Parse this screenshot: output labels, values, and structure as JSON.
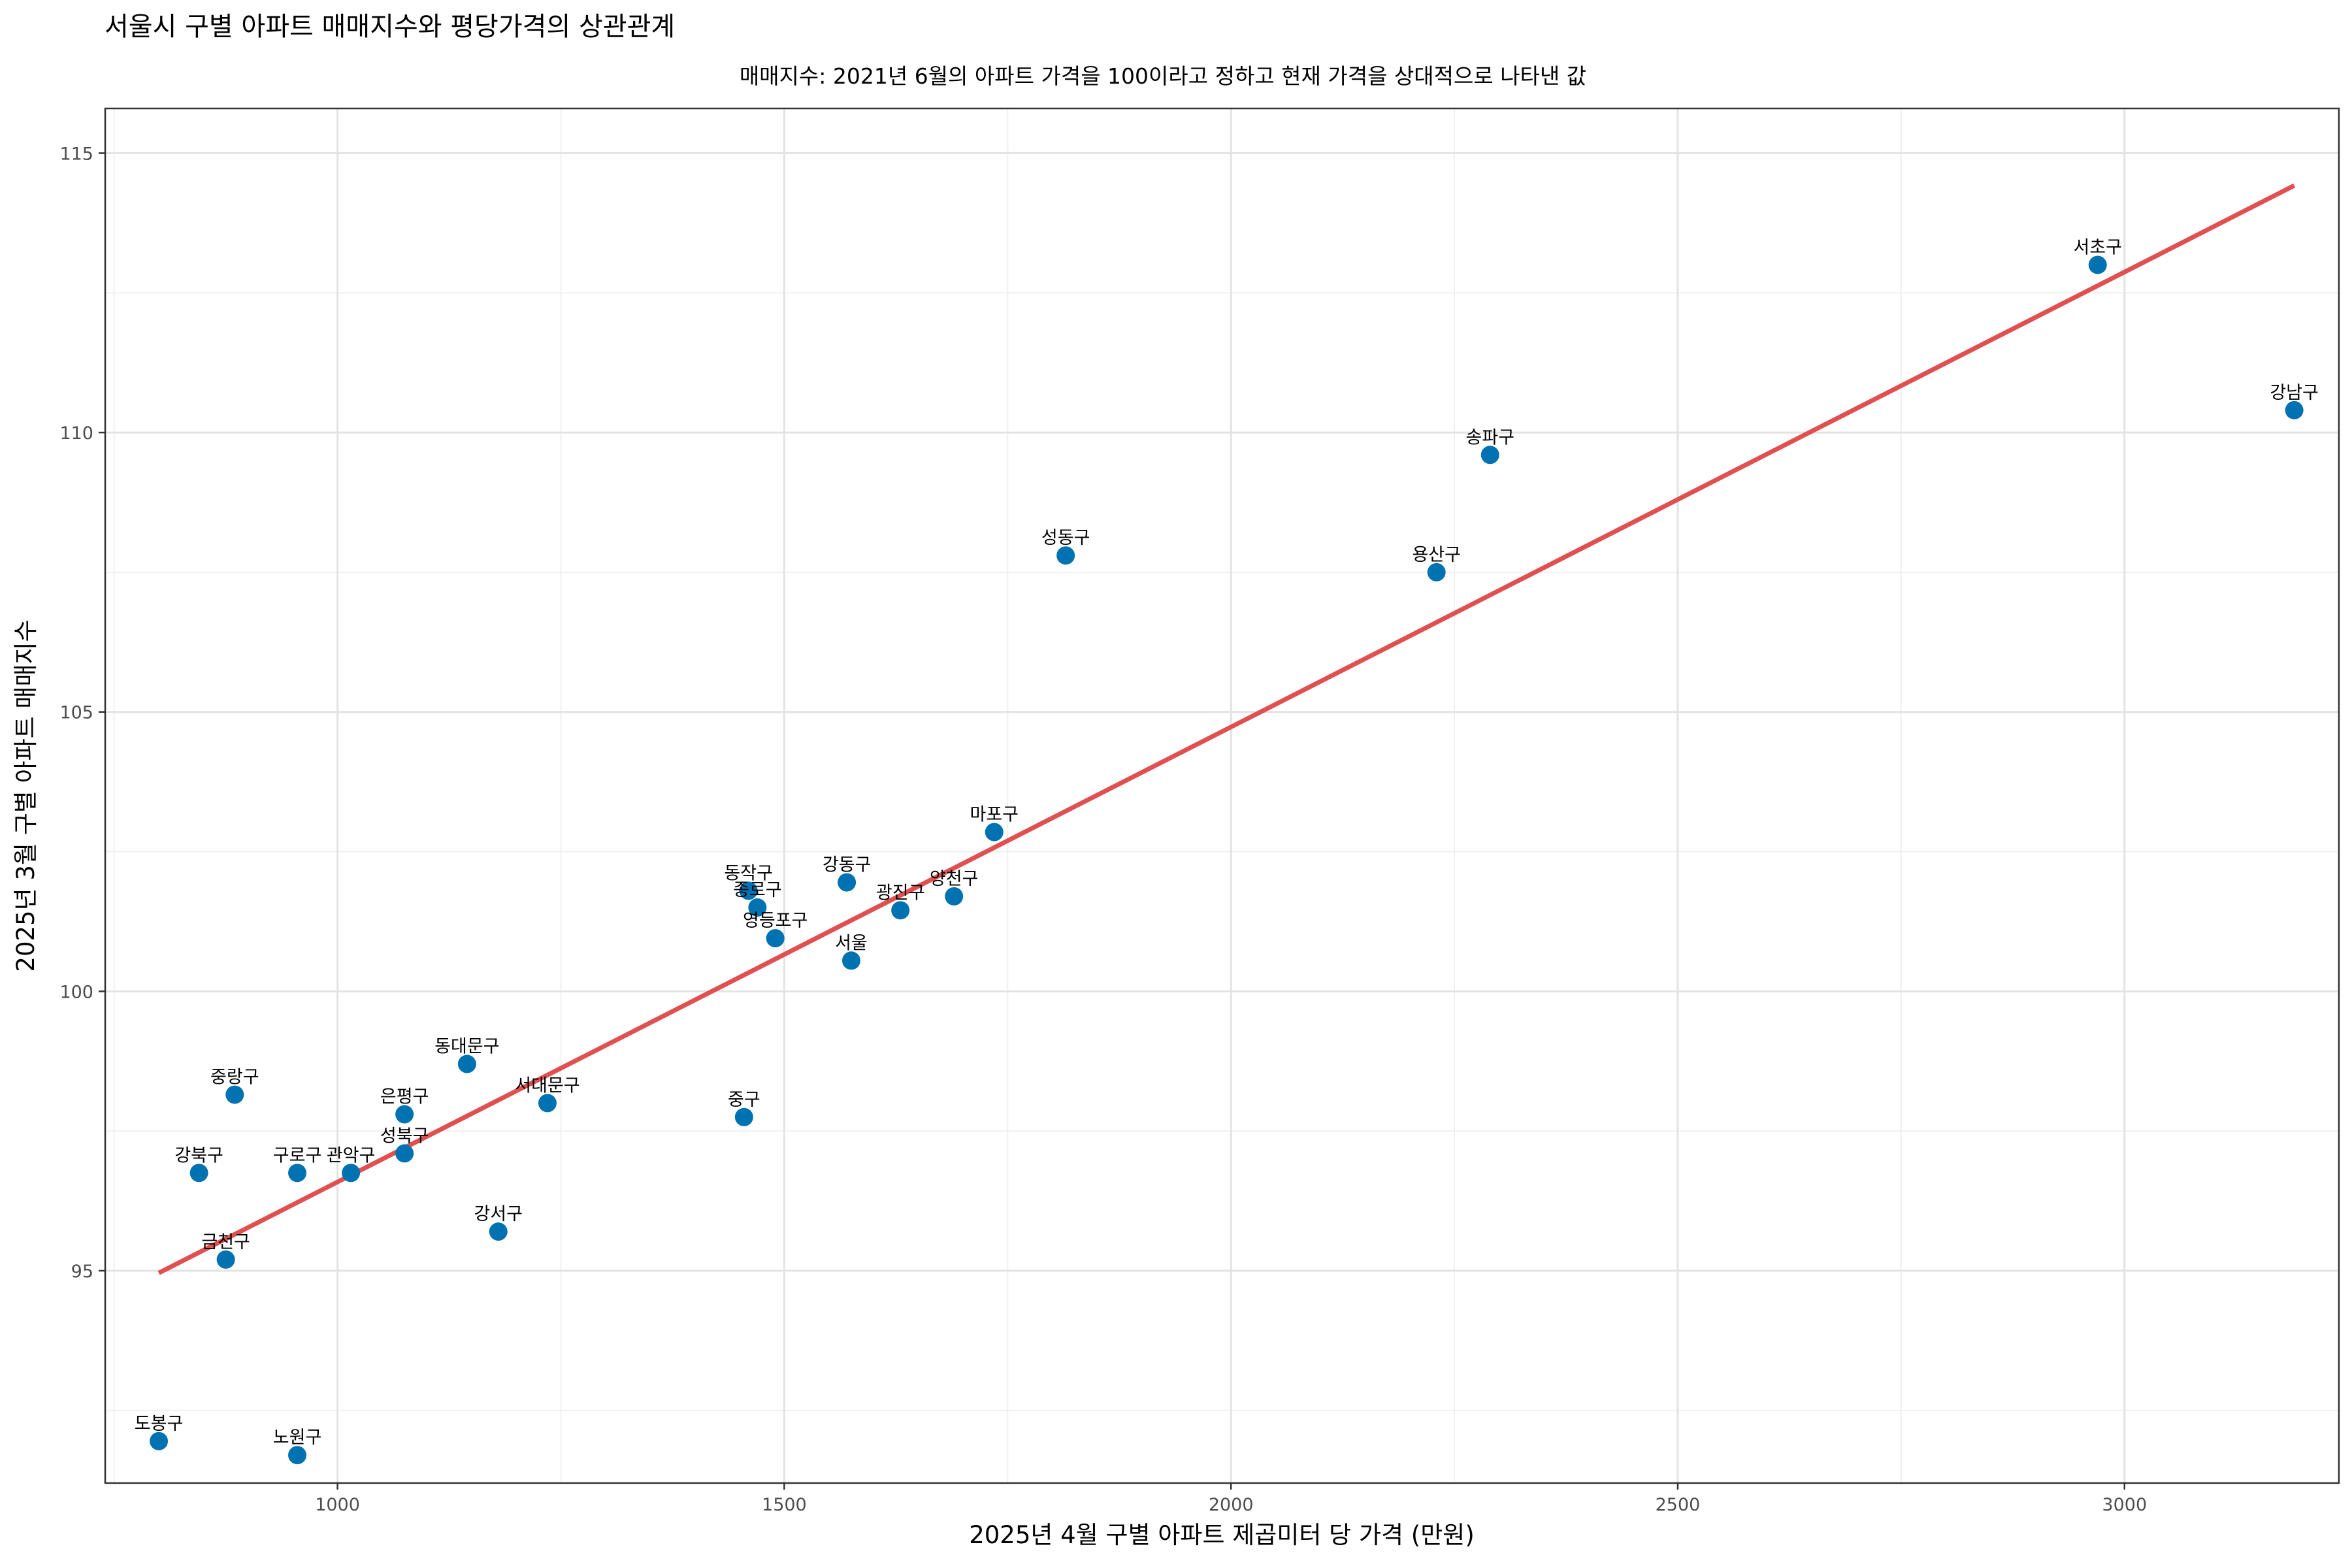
{
  "chart_data": {
    "type": "scatter",
    "title": "서울시 구별 아파트 매매지수와 평당가격의 상관관계",
    "subtitle": "매매지수: 2021년 6월의 아파트 가격을 100이라고 정하고 현재 가격을 상대적으로 나타낸 값",
    "xlabel": "2025년 4월 구별 아파트 제곱미터 당 가격 (만원)",
    "ylabel": "2025년 3월 구별 아파트 매매지수",
    "xlim": [
      740,
      3240
    ],
    "ylim": [
      91.2,
      115.8
    ],
    "x_ticks": [
      1000,
      1500,
      2000,
      2500,
      3000
    ],
    "y_ticks": [
      95,
      100,
      105,
      110,
      115
    ],
    "grid": true,
    "legend": "none",
    "point_color": "#0072B2",
    "trend_color": "#E05050",
    "trend_line": {
      "x": [
        800,
        3190
      ],
      "y": [
        94.96,
        114.42
      ]
    },
    "points": [
      {
        "label": "서초구",
        "x": 2970,
        "y": 113.0
      },
      {
        "label": "강남구",
        "x": 3190,
        "y": 110.4
      },
      {
        "label": "송파구",
        "x": 2290,
        "y": 109.6
      },
      {
        "label": "용산구",
        "x": 2230,
        "y": 107.5
      },
      {
        "label": "성동구",
        "x": 1815,
        "y": 107.8
      },
      {
        "label": "마포구",
        "x": 1735,
        "y": 102.85
      },
      {
        "label": "양천구",
        "x": 1690,
        "y": 101.7
      },
      {
        "label": "광진구",
        "x": 1630,
        "y": 101.45
      },
      {
        "label": "강동구",
        "x": 1570,
        "y": 101.95
      },
      {
        "label": "서울",
        "x": 1575,
        "y": 100.55
      },
      {
        "label": "동작구",
        "x": 1460,
        "y": 101.8
      },
      {
        "label": "종로구",
        "x": 1470,
        "y": 101.5
      },
      {
        "label": "영등포구",
        "x": 1490,
        "y": 100.95
      },
      {
        "label": "중구",
        "x": 1455,
        "y": 97.75
      },
      {
        "label": "서대문구",
        "x": 1235,
        "y": 98.0
      },
      {
        "label": "동대문구",
        "x": 1145,
        "y": 98.7
      },
      {
        "label": "강서구",
        "x": 1180,
        "y": 95.7
      },
      {
        "label": "은평구",
        "x": 1075,
        "y": 97.8
      },
      {
        "label": "성북구",
        "x": 1075,
        "y": 97.1
      },
      {
        "label": "관악구",
        "x": 1015,
        "y": 96.75
      },
      {
        "label": "구로구",
        "x": 955,
        "y": 96.75
      },
      {
        "label": "중랑구",
        "x": 885,
        "y": 98.15
      },
      {
        "label": "강북구",
        "x": 845,
        "y": 96.75
      },
      {
        "label": "금천구",
        "x": 875,
        "y": 95.2
      },
      {
        "label": "도봉구",
        "x": 800,
        "y": 91.95
      },
      {
        "label": "노원구",
        "x": 955,
        "y": 91.7
      }
    ]
  }
}
